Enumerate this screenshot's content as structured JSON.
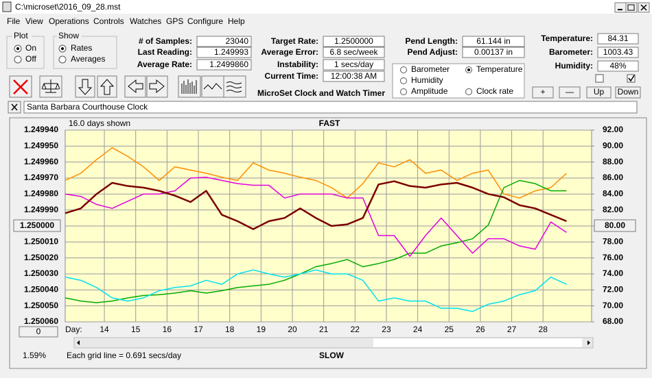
{
  "window": {
    "title": "C:\\microset\\2016_09_28.mst"
  },
  "menu": [
    "File",
    "View",
    "Operations",
    "Controls",
    "Watches",
    "GPS",
    "Configure",
    "Help"
  ],
  "plot_group": {
    "label": "Plot",
    "options": [
      "On",
      "Off"
    ]
  },
  "show_group": {
    "label": "Show",
    "options": [
      "Rates",
      "Averages"
    ]
  },
  "fields": [
    {
      "label": "# of Samples:",
      "value": "23040"
    },
    {
      "label": "Last Reading:",
      "value": "1.249993"
    },
    {
      "label": "Average Rate:",
      "value": "1.2499860"
    },
    {
      "label": "Target Rate:",
      "value": "1.2500000"
    },
    {
      "label": "Average Error:",
      "value": "6.8 sec/week"
    },
    {
      "label": "Instability:",
      "value": "1 secs/day"
    },
    {
      "label": "Current Time:",
      "value": "12:00:38 AM"
    },
    {
      "label": "Pend Length:",
      "value": "61.144 in"
    },
    {
      "label": "Pend Adjust:",
      "value": "0.00137 in"
    },
    {
      "label": "Temperature:",
      "value": "84.31"
    },
    {
      "label": "Barometer:",
      "value": "1003.43"
    },
    {
      "label": "Humidity:",
      "value": "48%"
    }
  ],
  "app_title": "MicroSet Clock and Watch Timer",
  "buttons": [
    "+",
    "—",
    "Up",
    "Down"
  ],
  "clock_name": "Santa Barbara Courthouse Clock",
  "status": {
    "scroll_box": "0",
    "percent": "1.59%",
    "grid_note": "Each grid line = 0.691 secs/day"
  },
  "chart_data": {
    "type": "line",
    "subtitle": "16.0 days shown",
    "top_label": "FAST",
    "bottom_label": "SLOW",
    "x_label": "Day:",
    "x": [
      12.75,
      13.25,
      13.75,
      14.25,
      14.75,
      15.25,
      15.75,
      16.25,
      16.75,
      17.25,
      17.75,
      18.25,
      18.75,
      19.25,
      19.75,
      20.25,
      20.75,
      21.25,
      21.75,
      22.25,
      22.75,
      23.25,
      23.75,
      24.25,
      24.75,
      25.25,
      25.75,
      26.25,
      26.75,
      27.25,
      27.75,
      28.25,
      28.75
    ],
    "xlim": [
      12.75,
      29.55
    ],
    "xticks": [
      14,
      15,
      16,
      17,
      18,
      19,
      20,
      21,
      22,
      23,
      24,
      25,
      26,
      27,
      28
    ],
    "ylim": [
      1.25006,
      1.24994
    ],
    "yticks": [
      {
        "value": 1.24994,
        "label": "1.249940"
      },
      {
        "value": 1.24995,
        "label": "1.249950"
      },
      {
        "value": 1.24996,
        "label": "1.249960"
      },
      {
        "value": 1.24997,
        "label": "1.249970"
      },
      {
        "value": 1.24998,
        "label": "1.249980"
      },
      {
        "value": 1.24999,
        "label": "1.249990"
      },
      {
        "value": 1.25,
        "label": "1.250000"
      },
      {
        "value": 1.25001,
        "label": "1.250010"
      },
      {
        "value": 1.25002,
        "label": "1.250020"
      },
      {
        "value": 1.25003,
        "label": "1.250030"
      },
      {
        "value": 1.25004,
        "label": "1.250040"
      },
      {
        "value": 1.25005,
        "label": "1.250050"
      },
      {
        "value": 1.25006,
        "label": "1.250060"
      }
    ],
    "y2lim": [
      68,
      92
    ],
    "y2ticks": [
      {
        "value": 92,
        "label": "92.00"
      },
      {
        "value": 90,
        "label": "90.00"
      },
      {
        "value": 88,
        "label": "88.00"
      },
      {
        "value": 86,
        "label": "86.00"
      },
      {
        "value": 84,
        "label": "84.00"
      },
      {
        "value": 82,
        "label": "82.00"
      },
      {
        "value": 80,
        "label": "80.00"
      },
      {
        "value": 78,
        "label": "78.00"
      },
      {
        "value": 76,
        "label": "76.00"
      },
      {
        "value": 74,
        "label": "74.00"
      },
      {
        "value": 72,
        "label": "72.00"
      },
      {
        "value": 70,
        "label": "70.00"
      },
      {
        "value": 68,
        "label": "68.00"
      }
    ],
    "grid": true,
    "series": [
      {
        "name": "Barometer",
        "color": "#ff8c00",
        "axis": "y2",
        "values": [
          85.7,
          86.6,
          88.3,
          89.8,
          88.7,
          87.4,
          85.7,
          87.4,
          87.0,
          86.6,
          86.1,
          85.7,
          87.9,
          87.0,
          86.6,
          86.1,
          85.7,
          84.8,
          83.5,
          85.3,
          87.9,
          87.4,
          88.3,
          86.6,
          87.0,
          85.7,
          86.6,
          87.0,
          84.0,
          83.5,
          84.4,
          84.8,
          86.6
        ]
      },
      {
        "name": "Temperature",
        "color": "#00aa00",
        "axis": "y2",
        "values": [
          71.0,
          70.6,
          70.4,
          70.6,
          71.0,
          71.3,
          71.4,
          71.6,
          71.9,
          71.6,
          71.9,
          72.3,
          72.5,
          72.7,
          73.2,
          74.0,
          74.9,
          75.3,
          75.8,
          74.9,
          75.3,
          75.8,
          76.6,
          76.6,
          77.5,
          77.9,
          78.4,
          80.1,
          84.8,
          85.7,
          85.3,
          84.4,
          84.4
        ]
      },
      {
        "name": "Humidity",
        "color": "#e000e0",
        "axis": "y2",
        "values": [
          84.0,
          83.7,
          82.7,
          82.2,
          83.1,
          84.0,
          84.0,
          84.4,
          86.0,
          86.1,
          85.7,
          85.3,
          85.1,
          85.1,
          83.5,
          84.0,
          84.0,
          84.0,
          83.5,
          83.5,
          78.8,
          78.8,
          76.2,
          78.8,
          81.0,
          78.8,
          76.6,
          78.4,
          78.4,
          77.5,
          77.1,
          80.5,
          79.2
        ]
      },
      {
        "name": "Amplitude",
        "color": "#00e0f0",
        "axis": "y2",
        "values": [
          73.6,
          73.2,
          72.3,
          71.0,
          70.6,
          71.0,
          71.9,
          72.3,
          72.5,
          73.2,
          72.7,
          74.0,
          74.5,
          74.0,
          73.6,
          74.0,
          74.5,
          74.0,
          74.0,
          73.2,
          70.6,
          71.0,
          70.6,
          70.6,
          69.7,
          69.7,
          69.3,
          70.2,
          70.6,
          71.4,
          71.9,
          73.6,
          72.7
        ]
      },
      {
        "name": "Clock rate",
        "color": "#7a0000",
        "values": [
          1.249992,
          1.249989,
          1.24998,
          1.249973,
          1.249975,
          1.249976,
          1.249978,
          1.249981,
          1.249985,
          1.249978,
          1.249993,
          1.249997,
          1.250002,
          1.249997,
          1.249995,
          1.249989,
          1.249995,
          1.25,
          1.249999,
          1.249995,
          1.249974,
          1.249972,
          1.249975,
          1.249976,
          1.249974,
          1.249973,
          1.249976,
          1.24998,
          1.249982,
          1.249987,
          1.249989,
          1.249993,
          1.249997
        ]
      }
    ]
  }
}
